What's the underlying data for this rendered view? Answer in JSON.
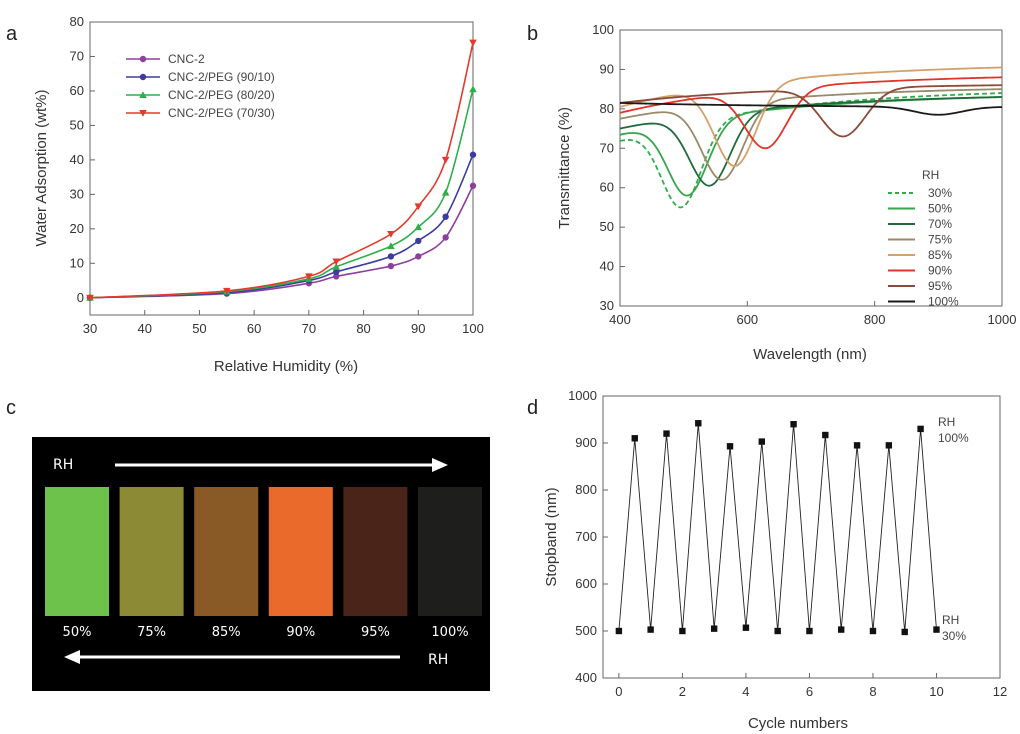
{
  "panels": {
    "a": "a",
    "b": "b",
    "c": "c",
    "d": "d"
  },
  "chart_data": [
    {
      "panel": "a",
      "type": "line",
      "xlabel": "Relative Humidity (%)",
      "ylabel": "Water Adsorption (wt%)",
      "xlim": [
        30,
        100
      ],
      "ylim": [
        -5,
        80
      ],
      "xticks": [
        30,
        40,
        50,
        60,
        70,
        80,
        90,
        100
      ],
      "yticks": [
        0,
        10,
        20,
        30,
        40,
        50,
        60,
        70,
        80
      ],
      "x": [
        30,
        55,
        70,
        75,
        85,
        90,
        95,
        100
      ],
      "legend_position": "top-left",
      "series": [
        {
          "name": "CNC-2",
          "color": "#8e3f9e",
          "marker": "circle",
          "values": [
            0,
            1.2,
            4.2,
            6.2,
            9.2,
            12,
            17.5,
            32.5
          ]
        },
        {
          "name": "CNC-2/PEG (90/10)",
          "color": "#3c3ca0",
          "marker": "circle",
          "values": [
            0,
            1.5,
            5,
            7.5,
            12,
            16.5,
            23.5,
            41.5
          ]
        },
        {
          "name": "CNC-2/PEG (80/20)",
          "color": "#2fae4a",
          "marker": "triangle-up",
          "values": [
            0,
            1.8,
            5.5,
            9,
            15,
            20.5,
            30.5,
            60.5
          ]
        },
        {
          "name": "CNC-2/PEG (70/30)",
          "color": "#e23b2e",
          "marker": "triangle-down",
          "values": [
            0,
            2,
            6.2,
            10.5,
            18.5,
            26.5,
            40,
            74
          ]
        }
      ]
    },
    {
      "panel": "b",
      "type": "line",
      "xlabel": "Wavelength (nm)",
      "ylabel": "Transmittance (%)",
      "xlim": [
        400,
        1000
      ],
      "ylim": [
        30,
        100
      ],
      "xticks": [
        400,
        600,
        800,
        1000
      ],
      "yticks": [
        30,
        40,
        50,
        60,
        70,
        80,
        90,
        100
      ],
      "legend_title": "RH",
      "legend_position": "right",
      "series": [
        {
          "name": "30%",
          "color": "#2fae4a",
          "dashed": true,
          "start": 72,
          "dip_x": 495,
          "dip_y": 55,
          "end": 84
        },
        {
          "name": "50%",
          "color": "#37a54a",
          "start": 73.5,
          "dip_x": 505,
          "dip_y": 58,
          "end": 83
        },
        {
          "name": "70%",
          "color": "#1f6b3c",
          "start": 75,
          "dip_x": 540,
          "dip_y": 60.5,
          "end": 83
        },
        {
          "name": "75%",
          "color": "#9a8a6a",
          "start": 77.5,
          "dip_x": 560,
          "dip_y": 62,
          "end": 85
        },
        {
          "name": "85%",
          "color": "#d4a06a",
          "start": 80.5,
          "dip_x": 580,
          "dip_y": 65.5,
          "end": 90.5
        },
        {
          "name": "90%",
          "color": "#e0352a",
          "start": 79,
          "dip_x": 628,
          "dip_y": 70,
          "end": 88
        },
        {
          "name": "95%",
          "color": "#8b4a3a",
          "start": 81.5,
          "dip_x": 750,
          "dip_y": 73,
          "end": 86
        },
        {
          "name": "100%",
          "color": "#1a1a1a",
          "start": 81.5,
          "dip_x": 900,
          "dip_y": 78.5,
          "end": 80.5
        }
      ]
    },
    {
      "panel": "d",
      "type": "line",
      "xlabel": "Cycle numbers",
      "ylabel": "Stopband (nm)",
      "xlim": [
        -0.5,
        12
      ],
      "ylim": [
        400,
        1000
      ],
      "xticks": [
        0,
        2,
        4,
        6,
        8,
        10,
        12
      ],
      "yticks": [
        400,
        500,
        600,
        700,
        800,
        900,
        1000
      ],
      "x": [
        0,
        0.5,
        1,
        1.5,
        2,
        2.5,
        3,
        3.5,
        4,
        4.5,
        5,
        5.5,
        6,
        6.5,
        7,
        7.5,
        8,
        8.5,
        9,
        9.5,
        10
      ],
      "values": [
        500,
        910,
        503,
        920,
        500,
        942,
        505,
        893,
        507,
        903,
        500,
        940,
        500,
        917,
        503,
        895,
        500,
        895,
        498,
        930,
        503
      ],
      "color": "#222222",
      "annotations": [
        {
          "line1": "RH",
          "line2": "100%"
        },
        {
          "line1": "RH",
          "line2": "30%"
        }
      ]
    }
  ],
  "panel_c": {
    "direction_top": "RH",
    "direction_bottom": "RH",
    "swatches": [
      {
        "label": "50%",
        "color": "#6cc24a"
      },
      {
        "label": "75%",
        "color": "#8c8a34"
      },
      {
        "label": "85%",
        "color": "#8a5a26"
      },
      {
        "label": "90%",
        "color": "#ea6a2c"
      },
      {
        "label": "95%",
        "color": "#4a2418"
      },
      {
        "label": "100%",
        "color": "#1e1e1c"
      }
    ]
  }
}
